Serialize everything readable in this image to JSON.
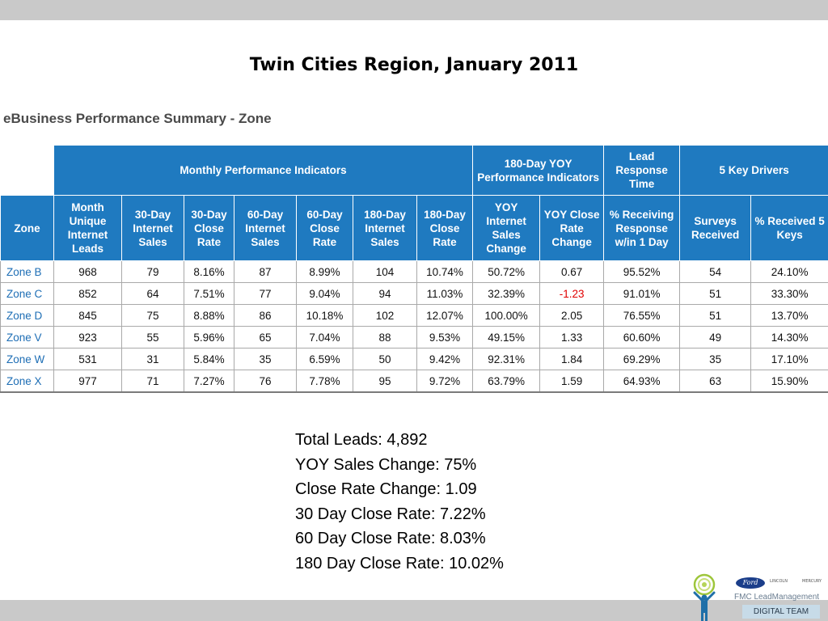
{
  "slide": {
    "title": "Twin Cities Region, January 2011"
  },
  "table": {
    "heading": "eBusiness Performance Summary - Zone",
    "groups": {
      "monthly": "Monthly Performance Indicators",
      "yoy": "180-Day YOY Performance Indicators",
      "lead": "Lead Response Time",
      "drivers": "5 Key Drivers"
    },
    "columns": [
      "Zone",
      "Month Unique Internet Leads",
      "30-Day Internet Sales",
      "30-Day Close Rate",
      "60-Day Internet Sales",
      "60-Day Close Rate",
      "180-Day Internet Sales",
      "180-Day Close Rate",
      "YOY Internet Sales Change",
      "YOY Close Rate Change",
      "% Receiving Response w/in 1 Day",
      "Surveys Received",
      "% Received 5 Keys"
    ],
    "rows": [
      [
        "Zone B",
        "968",
        "79",
        "8.16%",
        "87",
        "8.99%",
        "104",
        "10.74%",
        "50.72%",
        "0.67",
        "95.52%",
        "54",
        "24.10%"
      ],
      [
        "Zone C",
        "852",
        "64",
        "7.51%",
        "77",
        "9.04%",
        "94",
        "11.03%",
        "32.39%",
        "-1.23",
        "91.01%",
        "51",
        "33.30%"
      ],
      [
        "Zone D",
        "845",
        "75",
        "8.88%",
        "86",
        "10.18%",
        "102",
        "12.07%",
        "100.00%",
        "2.05",
        "76.55%",
        "51",
        "13.70%"
      ],
      [
        "Zone V",
        "923",
        "55",
        "5.96%",
        "65",
        "7.04%",
        "88",
        "9.53%",
        "49.15%",
        "1.33",
        "60.60%",
        "49",
        "14.30%"
      ],
      [
        "Zone W",
        "531",
        "31",
        "5.84%",
        "35",
        "6.59%",
        "50",
        "9.42%",
        "92.31%",
        "1.84",
        "69.29%",
        "35",
        "17.10%"
      ],
      [
        "Zone X",
        "977",
        "71",
        "7.27%",
        "76",
        "7.78%",
        "95",
        "9.72%",
        "63.79%",
        "1.59",
        "64.93%",
        "63",
        "15.90%"
      ]
    ]
  },
  "summary": {
    "total_leads": "Total Leads: 4,892",
    "yoy_sales_change": "YOY Sales Change: 75%",
    "close_rate_change": "Close Rate Change: 1.09",
    "close_rate_30": "30 Day Close Rate: 7.22%",
    "close_rate_60": "60 Day Close Rate: 8.03%",
    "close_rate_180": "180 Day Close Rate: 10.02%"
  },
  "logo": {
    "ford": "Ford",
    "lincoln": "LINCOLN",
    "mercury": "MERCURY",
    "fmc": "FMC LeadManagement",
    "digital": "DIGITAL TEAM"
  },
  "colors": {
    "header_blue": "#1f7ac0",
    "zone_link": "#1e6eb5",
    "negative": "#e00000",
    "bar_gray": "#c9c9c9"
  }
}
